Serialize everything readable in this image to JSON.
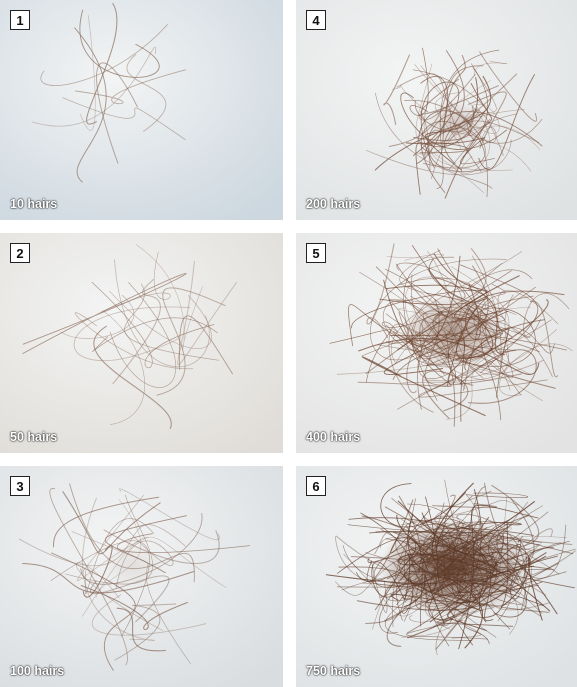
{
  "panels": [
    {
      "number": "1",
      "caption": "10 hairs",
      "hair_count": 10,
      "tone": "#ccd7df",
      "strand": "#8a6f5f"
    },
    {
      "number": "4",
      "caption": "200 hairs",
      "hair_count": 200,
      "tone": "#dfe2e3",
      "strand": "#7a5543"
    },
    {
      "number": "2",
      "caption": "50 hairs",
      "hair_count": 50,
      "tone": "#e0ddd8",
      "strand": "#8e705f"
    },
    {
      "number": "5",
      "caption": "400 hairs",
      "hair_count": 400,
      "tone": "#e2e3e2",
      "strand": "#6e4530"
    },
    {
      "number": "3",
      "caption": "100 hairs",
      "hair_count": 100,
      "tone": "#d9dde0",
      "strand": "#86695a"
    },
    {
      "number": "6",
      "caption": "750 hairs",
      "hair_count": 750,
      "tone": "#dee2e4",
      "strand": "#5e3a28"
    }
  ]
}
